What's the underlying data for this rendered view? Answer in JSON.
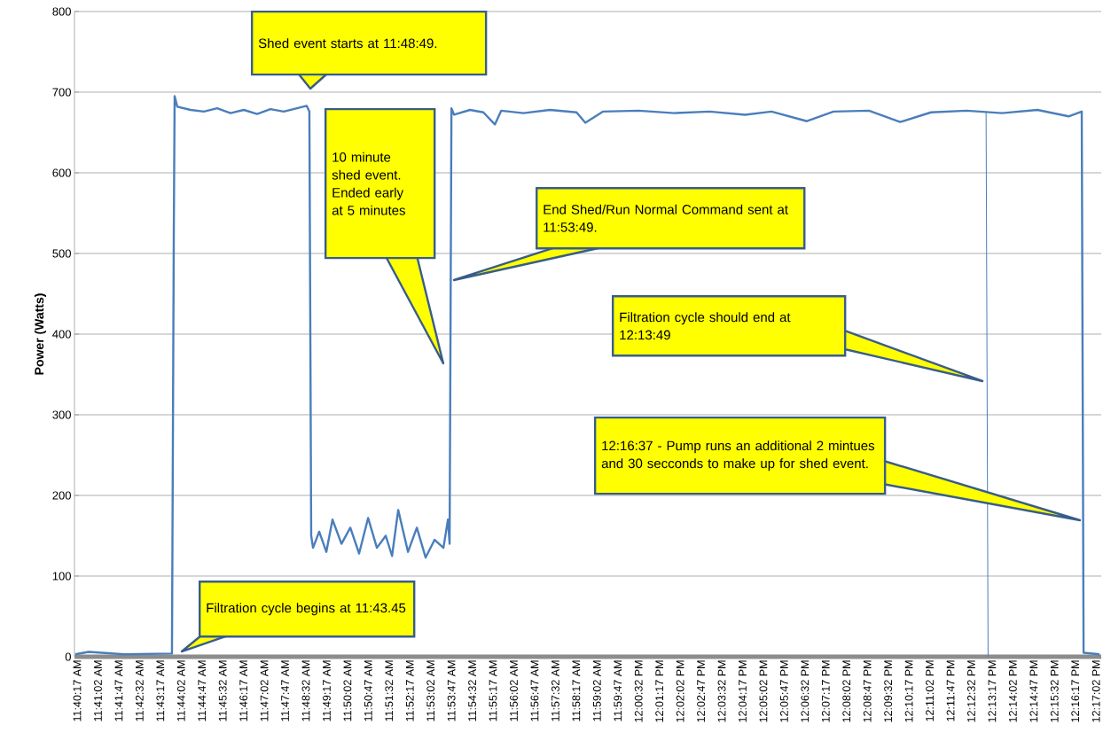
{
  "chart_data": {
    "type": "line",
    "ylabel": "Power (Watts)",
    "xlim": [
      11.6698,
      12.287
    ],
    "ylim": [
      0,
      800
    ],
    "yticks": [
      0,
      100,
      200,
      300,
      400,
      500,
      600,
      700,
      800
    ],
    "grid": "y",
    "xticks": [
      {
        "value": 11.6714,
        "label": "11:40:17 AM"
      },
      {
        "value": 11.6839,
        "label": "11:41:02 AM"
      },
      {
        "value": 11.6964,
        "label": "11:41:47 AM"
      },
      {
        "value": 11.7089,
        "label": "11:42:32 AM"
      },
      {
        "value": 11.7214,
        "label": "11:43:17 AM"
      },
      {
        "value": 11.7339,
        "label": "11:44:02 AM"
      },
      {
        "value": 11.7464,
        "label": "11:44:47 AM"
      },
      {
        "value": 11.7589,
        "label": "11:45:32 AM"
      },
      {
        "value": 11.7714,
        "label": "11:46:17 AM"
      },
      {
        "value": 11.7839,
        "label": "11:47:02 AM"
      },
      {
        "value": 11.7964,
        "label": "11:47:47 AM"
      },
      {
        "value": 11.8089,
        "label": "11:48:32 AM"
      },
      {
        "value": 11.8214,
        "label": "11:49:17 AM"
      },
      {
        "value": 11.8339,
        "label": "11:50:02 AM"
      },
      {
        "value": 11.8464,
        "label": "11:50:47 AM"
      },
      {
        "value": 11.8589,
        "label": "11:51:32 AM"
      },
      {
        "value": 11.8714,
        "label": "11:52:17 AM"
      },
      {
        "value": 11.8839,
        "label": "11:53:02 AM"
      },
      {
        "value": 11.8964,
        "label": "11:53:47 AM"
      },
      {
        "value": 11.9089,
        "label": "11:54:32 AM"
      },
      {
        "value": 11.9214,
        "label": "11:55:17 AM"
      },
      {
        "value": 11.9339,
        "label": "11:56:02 AM"
      },
      {
        "value": 11.9464,
        "label": "11:56:47 AM"
      },
      {
        "value": 11.9589,
        "label": "11:57:32 AM"
      },
      {
        "value": 11.9714,
        "label": "11:58:17 AM"
      },
      {
        "value": 11.9839,
        "label": "11:59:02 AM"
      },
      {
        "value": 11.9964,
        "label": "11:59:47 AM"
      },
      {
        "value": 12.0089,
        "label": "12:00:32 PM"
      },
      {
        "value": 12.0214,
        "label": "12:01:17 PM"
      },
      {
        "value": 12.0339,
        "label": "12:02:02 PM"
      },
      {
        "value": 12.0464,
        "label": "12:02:47 PM"
      },
      {
        "value": 12.0589,
        "label": "12:03:32 PM"
      },
      {
        "value": 12.0714,
        "label": "12:04:17 PM"
      },
      {
        "value": 12.0839,
        "label": "12:05:02 PM"
      },
      {
        "value": 12.0964,
        "label": "12:05:47 PM"
      },
      {
        "value": 12.1089,
        "label": "12:06:32 PM"
      },
      {
        "value": 12.1214,
        "label": "12:07:17 PM"
      },
      {
        "value": 12.1339,
        "label": "12:08:02 PM"
      },
      {
        "value": 12.1464,
        "label": "12:08:47 PM"
      },
      {
        "value": 12.1589,
        "label": "12:09:32 PM"
      },
      {
        "value": 12.1714,
        "label": "12:10:17 PM"
      },
      {
        "value": 12.1839,
        "label": "12:11:02 PM"
      },
      {
        "value": 12.1964,
        "label": "12:11:47 PM"
      },
      {
        "value": 12.2089,
        "label": "12:12:32 PM"
      },
      {
        "value": 12.2214,
        "label": "12:13:17 PM"
      },
      {
        "value": 12.2339,
        "label": "12:14:02 PM"
      },
      {
        "value": 12.2464,
        "label": "12:14:47 PM"
      },
      {
        "value": 12.2589,
        "label": "12:15:32 PM"
      },
      {
        "value": 12.2714,
        "label": "12:16:17 PM"
      },
      {
        "value": 12.2839,
        "label": "12:17:02 PM"
      }
    ],
    "series": [
      {
        "color": "#4a7ebb",
        "x": [
          11.6703,
          11.6783,
          11.6996,
          11.7284,
          11.7295,
          11.73,
          11.7316,
          11.7396,
          11.7476,
          11.7556,
          11.7636,
          11.7716,
          11.7796,
          11.7876,
          11.7956,
          11.8036,
          11.8094,
          11.811,
          11.8121,
          11.8132,
          11.8169,
          11.8212,
          11.8249,
          11.8303,
          11.8356,
          11.8409,
          11.8463,
          11.8516,
          11.8569,
          11.8607,
          11.8644,
          11.8703,
          11.8756,
          11.8809,
          11.8863,
          11.8916,
          11.8943,
          11.8953,
          11.8964,
          11.898,
          11.9076,
          11.9156,
          11.9225,
          11.9263,
          11.9396,
          11.9556,
          11.9716,
          11.9769,
          11.9876,
          12.0089,
          12.0303,
          12.0516,
          12.0729,
          12.0888,
          12.1101,
          12.1261,
          12.1474,
          12.1661,
          12.1847,
          12.2061,
          12.2274,
          12.2487,
          12.2674,
          12.2753,
          12.2764,
          12.286
        ],
        "values": [
          3,
          6,
          3,
          4,
          525,
          695,
          682,
          678,
          676,
          680,
          674,
          678,
          673,
          679,
          676,
          680,
          683,
          676,
          150,
          135,
          155,
          130,
          170,
          140,
          160,
          128,
          172,
          135,
          150,
          125,
          182,
          130,
          160,
          123,
          145,
          135,
          170,
          140,
          680,
          672,
          678,
          675,
          660,
          677,
          674,
          678,
          675,
          662,
          676,
          677,
          674,
          676,
          672,
          676,
          664,
          676,
          677,
          663,
          675,
          677,
          674,
          678,
          670,
          676,
          5,
          3
        ]
      },
      {
        "color": "#4a7ebb",
        "x": [
          12.2178,
          12.219
        ],
        "values": [
          675,
          0
        ]
      }
    ],
    "annotations": [
      "Filtration cycle begins at 11:43.45",
      "Shed event starts at 11:48:49.",
      "10 minute shed event. Ended early at 5 minutes",
      "End Shed/Run Normal Command sent at 11:53:49.",
      "Filtration cycle should end at 12:13:49",
      "12:16:37 - Pump runs an additional 2 mintues and 30 secconds to make up for shed event."
    ]
  }
}
